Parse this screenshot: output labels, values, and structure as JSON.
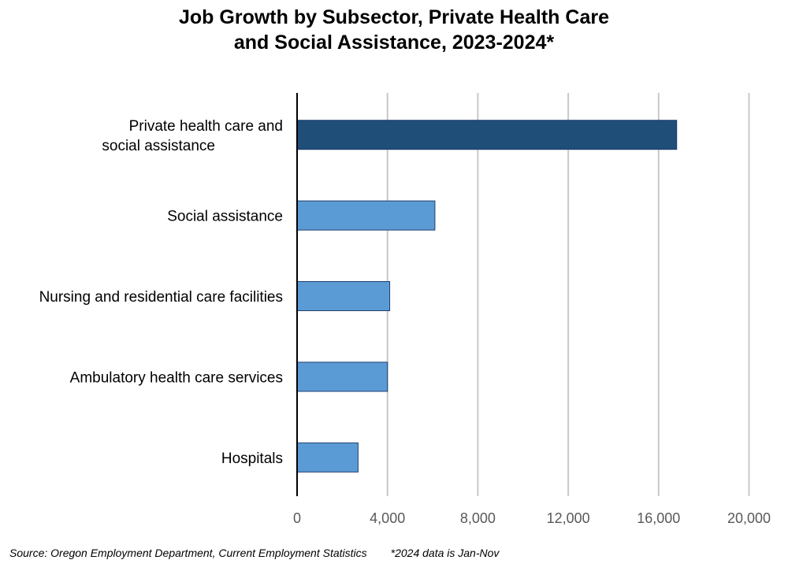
{
  "chart_data": {
    "type": "bar",
    "orientation": "horizontal",
    "title_lines": [
      "Job Growth by Subsector, Private Health Care",
      "and Social Assistance, 2023-2024*"
    ],
    "categories": [
      "Private health care and social assistance",
      "Social assistance",
      "Nursing and residential care facilities",
      "Ambulatory health care services",
      "Hospitals"
    ],
    "values": [
      16800,
      6100,
      4100,
      4000,
      2700
    ],
    "highlight_color": "#1f4e79",
    "bar_color": "#5b9bd5",
    "xlim": [
      0,
      20000
    ],
    "xticks": [
      0,
      4000,
      8000,
      12000,
      16000,
      20000
    ],
    "xtick_labels": [
      "0",
      "4,000",
      "8,000",
      "12,000",
      "16,000",
      "20,000"
    ],
    "grid": "vertical",
    "xlabel": "",
    "ylabel": ""
  },
  "footer": {
    "source": "Source: Oregon Employment Department, Current Employment Statistics",
    "note": "*2024 data is Jan-Nov"
  }
}
